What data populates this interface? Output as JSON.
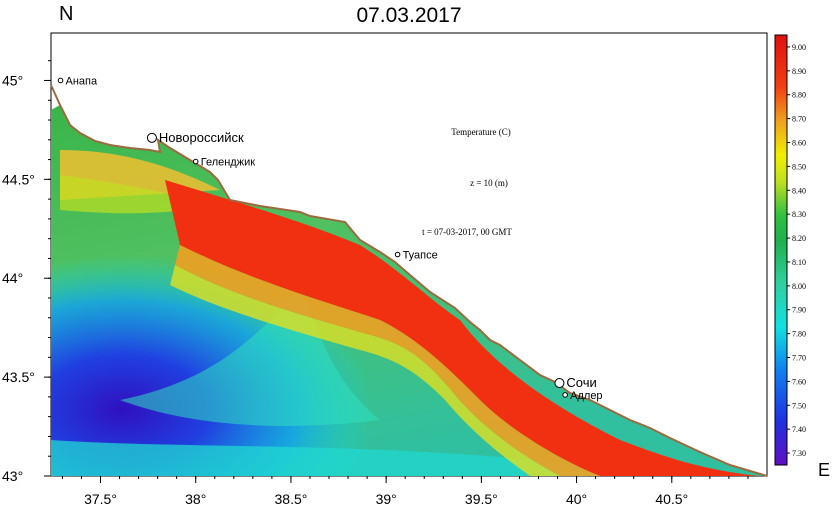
{
  "title": "07.03.2017",
  "compass": {
    "north": "N",
    "east": "E"
  },
  "annotations": {
    "variable": "Temperature (C)",
    "depth": "z = 10 (m)",
    "time": "t = 07-03-2017,  00 GMT"
  },
  "x_axis": {
    "ticks": [
      {
        "value": 37.5,
        "label": "37.5°"
      },
      {
        "value": 38.0,
        "label": "38°"
      },
      {
        "value": 38.5,
        "label": "38.5°"
      },
      {
        "value": 39.0,
        "label": "39°"
      },
      {
        "value": 39.5,
        "label": "39.5°"
      },
      {
        "value": 40.0,
        "label": "40°"
      },
      {
        "value": 40.5,
        "label": "40.5°"
      }
    ],
    "range": [
      37.24,
      41.0
    ]
  },
  "y_axis": {
    "ticks": [
      {
        "value": 45.0,
        "label": "45°"
      },
      {
        "value": 44.5,
        "label": "44.5°"
      },
      {
        "value": 44.0,
        "label": "44°"
      },
      {
        "value": 43.5,
        "label": "43.5°"
      },
      {
        "value": 43.0,
        "label": "43°"
      }
    ],
    "range": [
      43.0,
      45.24
    ]
  },
  "cities": [
    {
      "name": "Анапа",
      "lon": 37.29,
      "lat": 45.0,
      "marker": "small"
    },
    {
      "name": "Новороссийск",
      "lon": 37.77,
      "lat": 44.71,
      "marker": "large"
    },
    {
      "name": "Геленджик",
      "lon": 38.0,
      "lat": 44.59,
      "marker": "small"
    },
    {
      "name": "Туапсе",
      "lon": 39.06,
      "lat": 44.12,
      "marker": "small"
    },
    {
      "name": "Сочи",
      "lon": 39.91,
      "lat": 43.47,
      "marker": "large"
    },
    {
      "name": "Адлер",
      "lon": 39.94,
      "lat": 43.41,
      "marker": "small"
    }
  ],
  "colorbar": {
    "min": 7.25,
    "max": 9.05,
    "labels": [
      "9.00",
      "8.90",
      "8.80",
      "8.70",
      "8.60",
      "8.50",
      "8.40",
      "8.30",
      "8.20",
      "8.10",
      "8.00",
      "7.90",
      "7.80",
      "7.70",
      "7.60",
      "7.50",
      "7.40",
      "7.30"
    ]
  },
  "colors": {
    "coastline": "#9a6b3e",
    "frame": "#000000"
  }
}
